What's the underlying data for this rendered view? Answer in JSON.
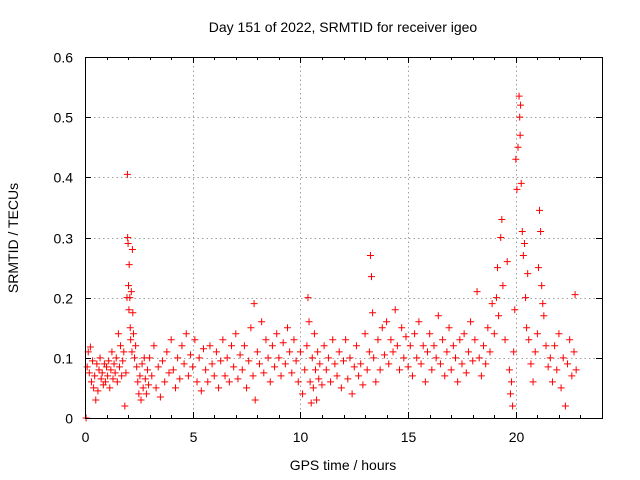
{
  "chart_data": {
    "type": "scatter",
    "title": "Day 151 of 2022, SRMTID for receiver igeo",
    "xlabel": "GPS time / hours",
    "ylabel": "SRMTID / TECUs",
    "xlim": [
      0,
      24
    ],
    "ylim": [
      0,
      0.6
    ],
    "xticks": [
      0,
      5,
      10,
      15,
      20
    ],
    "yticks": [
      0,
      0.1,
      0.2,
      0.3,
      0.4,
      0.5,
      0.6
    ],
    "xtick_labels": [
      "0",
      "5",
      "10",
      "15",
      "20"
    ],
    "ytick_labels": [
      "0",
      "0.1",
      "0.2",
      "0.3",
      "0.4",
      "0.5",
      "0.6"
    ],
    "grid": true,
    "marker": "+",
    "series": [
      {
        "name": "igeo",
        "color": "#ff0000",
        "points": [
          [
            0.05,
            0.0
          ],
          [
            0.1,
            0.085
          ],
          [
            0.15,
            0.11
          ],
          [
            0.2,
            0.075
          ],
          [
            0.25,
            0.118
          ],
          [
            0.3,
            0.06
          ],
          [
            0.35,
            0.095
          ],
          [
            0.4,
            0.05
          ],
          [
            0.45,
            0.07
          ],
          [
            0.5,
            0.03
          ],
          [
            0.55,
            0.09
          ],
          [
            0.6,
            0.045
          ],
          [
            0.65,
            0.08
          ],
          [
            0.7,
            0.1
          ],
          [
            0.75,
            0.065
          ],
          [
            0.8,
            0.075
          ],
          [
            0.85,
            0.055
          ],
          [
            0.9,
            0.09
          ],
          [
            0.95,
            0.06
          ],
          [
            1.0,
            0.085
          ],
          [
            1.05,
            0.07
          ],
          [
            1.1,
            0.095
          ],
          [
            1.15,
            0.05
          ],
          [
            1.2,
            0.08
          ],
          [
            1.25,
            0.11
          ],
          [
            1.3,
            0.065
          ],
          [
            1.35,
            0.09
          ],
          [
            1.4,
            0.075
          ],
          [
            1.45,
            0.1
          ],
          [
            1.5,
            0.06
          ],
          [
            1.55,
            0.14
          ],
          [
            1.6,
            0.085
          ],
          [
            1.65,
            0.12
          ],
          [
            1.7,
            0.07
          ],
          [
            1.75,
            0.095
          ],
          [
            1.8,
            0.11
          ],
          [
            1.85,
            0.02
          ],
          [
            1.9,
            0.075
          ],
          [
            1.95,
            0.2
          ],
          [
            1.97,
            0.405
          ],
          [
            1.98,
            0.3
          ],
          [
            2.0,
            0.29
          ],
          [
            2.02,
            0.22
          ],
          [
            2.04,
            0.18
          ],
          [
            2.05,
            0.255
          ],
          [
            2.08,
            0.2
          ],
          [
            2.1,
            0.15
          ],
          [
            2.12,
            0.13
          ],
          [
            2.15,
            0.21
          ],
          [
            2.18,
            0.11
          ],
          [
            2.2,
            0.28
          ],
          [
            2.22,
            0.175
          ],
          [
            2.25,
            0.14
          ],
          [
            2.3,
            0.1
          ],
          [
            2.35,
            0.12
          ],
          [
            2.4,
            0.085
          ],
          [
            2.45,
            0.06
          ],
          [
            2.5,
            0.04
          ],
          [
            2.55,
            0.07
          ],
          [
            2.6,
            0.03
          ],
          [
            2.65,
            0.09
          ],
          [
            2.7,
            0.05
          ],
          [
            2.75,
            0.1
          ],
          [
            2.8,
            0.065
          ],
          [
            2.85,
            0.04
          ],
          [
            2.9,
            0.08
          ],
          [
            2.95,
            0.055
          ],
          [
            3.0,
            0.1
          ],
          [
            3.1,
            0.07
          ],
          [
            3.2,
            0.12
          ],
          [
            3.3,
            0.05
          ],
          [
            3.4,
            0.085
          ],
          [
            3.5,
            0.035
          ],
          [
            3.6,
            0.095
          ],
          [
            3.7,
            0.06
          ],
          [
            3.8,
            0.11
          ],
          [
            3.9,
            0.075
          ],
          [
            4.0,
            0.13
          ],
          [
            4.1,
            0.08
          ],
          [
            4.2,
            0.05
          ],
          [
            4.3,
            0.1
          ],
          [
            4.4,
            0.065
          ],
          [
            4.5,
            0.12
          ],
          [
            4.6,
            0.09
          ],
          [
            4.7,
            0.14
          ],
          [
            4.8,
            0.07
          ],
          [
            4.9,
            0.105
          ],
          [
            5.0,
            0.085
          ],
          [
            5.1,
            0.13
          ],
          [
            5.2,
            0.06
          ],
          [
            5.3,
            0.1
          ],
          [
            5.4,
            0.045
          ],
          [
            5.5,
            0.115
          ],
          [
            5.6,
            0.08
          ],
          [
            5.7,
            0.06
          ],
          [
            5.8,
            0.12
          ],
          [
            5.9,
            0.09
          ],
          [
            6.0,
            0.07
          ],
          [
            6.1,
            0.11
          ],
          [
            6.2,
            0.05
          ],
          [
            6.3,
            0.095
          ],
          [
            6.4,
            0.13
          ],
          [
            6.5,
            0.07
          ],
          [
            6.6,
            0.1
          ],
          [
            6.7,
            0.06
          ],
          [
            6.8,
            0.12
          ],
          [
            6.9,
            0.085
          ],
          [
            7.0,
            0.14
          ],
          [
            7.1,
            0.065
          ],
          [
            7.2,
            0.105
          ],
          [
            7.3,
            0.08
          ],
          [
            7.4,
            0.12
          ],
          [
            7.5,
            0.05
          ],
          [
            7.6,
            0.095
          ],
          [
            7.7,
            0.15
          ],
          [
            7.8,
            0.07
          ],
          [
            7.85,
            0.19
          ],
          [
            7.9,
            0.03
          ],
          [
            8.0,
            0.11
          ],
          [
            8.1,
            0.09
          ],
          [
            8.2,
            0.16
          ],
          [
            8.3,
            0.075
          ],
          [
            8.4,
            0.13
          ],
          [
            8.5,
            0.1
          ],
          [
            8.6,
            0.06
          ],
          [
            8.7,
            0.12
          ],
          [
            8.8,
            0.085
          ],
          [
            8.9,
            0.14
          ],
          [
            9.0,
            0.1
          ],
          [
            9.1,
            0.07
          ],
          [
            9.2,
            0.125
          ],
          [
            9.3,
            0.09
          ],
          [
            9.4,
            0.15
          ],
          [
            9.5,
            0.11
          ],
          [
            9.6,
            0.075
          ],
          [
            9.7,
            0.13
          ],
          [
            9.8,
            0.095
          ],
          [
            9.9,
            0.06
          ],
          [
            10.0,
            0.11
          ],
          [
            10.1,
            0.04
          ],
          [
            10.2,
            0.08
          ],
          [
            10.3,
            0.12
          ],
          [
            10.35,
            0.2
          ],
          [
            10.4,
            0.16
          ],
          [
            10.45,
            0.06
          ],
          [
            10.5,
            0.025
          ],
          [
            10.55,
            0.1
          ],
          [
            10.6,
            0.05
          ],
          [
            10.65,
            0.14
          ],
          [
            10.7,
            0.08
          ],
          [
            10.75,
            0.03
          ],
          [
            10.8,
            0.11
          ],
          [
            10.85,
            0.065
          ],
          [
            10.9,
            0.09
          ],
          [
            11.0,
            0.055
          ],
          [
            11.1,
            0.12
          ],
          [
            11.2,
            0.08
          ],
          [
            11.3,
            0.1
          ],
          [
            11.4,
            0.06
          ],
          [
            11.5,
            0.13
          ],
          [
            11.6,
            0.09
          ],
          [
            11.7,
            0.07
          ],
          [
            11.8,
            0.11
          ],
          [
            11.9,
            0.05
          ],
          [
            12.0,
            0.095
          ],
          [
            12.1,
            0.13
          ],
          [
            12.2,
            0.065
          ],
          [
            12.3,
            0.1
          ],
          [
            12.4,
            0.04
          ],
          [
            12.5,
            0.085
          ],
          [
            12.6,
            0.12
          ],
          [
            12.7,
            0.07
          ],
          [
            12.8,
            0.09
          ],
          [
            12.9,
            0.055
          ],
          [
            13.0,
            0.14
          ],
          [
            13.1,
            0.08
          ],
          [
            13.2,
            0.11
          ],
          [
            13.25,
            0.27
          ],
          [
            13.3,
            0.235
          ],
          [
            13.35,
            0.175
          ],
          [
            13.4,
            0.1
          ],
          [
            13.5,
            0.06
          ],
          [
            13.6,
            0.13
          ],
          [
            13.7,
            0.08
          ],
          [
            13.8,
            0.15
          ],
          [
            13.9,
            0.105
          ],
          [
            14.0,
            0.16
          ],
          [
            14.1,
            0.09
          ],
          [
            14.2,
            0.13
          ],
          [
            14.3,
            0.11
          ],
          [
            14.4,
            0.18
          ],
          [
            14.5,
            0.12
          ],
          [
            14.6,
            0.08
          ],
          [
            14.7,
            0.15
          ],
          [
            14.8,
            0.1
          ],
          [
            14.9,
            0.135
          ],
          [
            15.0,
            0.085
          ],
          [
            15.1,
            0.12
          ],
          [
            15.2,
            0.07
          ],
          [
            15.3,
            0.14
          ],
          [
            15.4,
            0.1
          ],
          [
            15.5,
            0.16
          ],
          [
            15.6,
            0.09
          ],
          [
            15.7,
            0.12
          ],
          [
            15.8,
            0.06
          ],
          [
            15.9,
            0.11
          ],
          [
            16.0,
            0.14
          ],
          [
            16.1,
            0.08
          ],
          [
            16.2,
            0.12
          ],
          [
            16.3,
            0.1
          ],
          [
            16.4,
            0.17
          ],
          [
            16.5,
            0.09
          ],
          [
            16.6,
            0.13
          ],
          [
            16.7,
            0.07
          ],
          [
            16.8,
            0.11
          ],
          [
            16.9,
            0.15
          ],
          [
            17.0,
            0.08
          ],
          [
            17.1,
            0.12
          ],
          [
            17.2,
            0.1
          ],
          [
            17.3,
            0.06
          ],
          [
            17.4,
            0.13
          ],
          [
            17.5,
            0.09
          ],
          [
            17.6,
            0.14
          ],
          [
            17.7,
            0.075
          ],
          [
            17.8,
            0.11
          ],
          [
            17.9,
            0.16
          ],
          [
            18.0,
            0.095
          ],
          [
            18.1,
            0.13
          ],
          [
            18.2,
            0.21
          ],
          [
            18.3,
            0.1
          ],
          [
            18.4,
            0.07
          ],
          [
            18.5,
            0.12
          ],
          [
            18.6,
            0.09
          ],
          [
            18.7,
            0.15
          ],
          [
            18.8,
            0.11
          ],
          [
            18.9,
            0.19
          ],
          [
            19.0,
            0.14
          ],
          [
            19.1,
            0.2
          ],
          [
            19.15,
            0.25
          ],
          [
            19.2,
            0.17
          ],
          [
            19.3,
            0.3
          ],
          [
            19.35,
            0.33
          ],
          [
            19.4,
            0.22
          ],
          [
            19.5,
            0.13
          ],
          [
            19.6,
            0.26
          ],
          [
            19.7,
            0.08
          ],
          [
            19.75,
            0.04
          ],
          [
            19.8,
            0.06
          ],
          [
            19.85,
            0.02
          ],
          [
            19.9,
            0.11
          ],
          [
            19.95,
            0.18
          ],
          [
            20.0,
            0.43
          ],
          [
            20.05,
            0.38
          ],
          [
            20.1,
            0.45
          ],
          [
            20.15,
            0.535
          ],
          [
            20.18,
            0.5
          ],
          [
            20.2,
            0.47
          ],
          [
            20.22,
            0.52
          ],
          [
            20.25,
            0.39
          ],
          [
            20.3,
            0.31
          ],
          [
            20.35,
            0.27
          ],
          [
            20.4,
            0.29
          ],
          [
            20.45,
            0.2
          ],
          [
            20.5,
            0.15
          ],
          [
            20.55,
            0.24
          ],
          [
            20.6,
            0.13
          ],
          [
            20.7,
            0.09
          ],
          [
            20.8,
            0.06
          ],
          [
            20.9,
            0.11
          ],
          [
            21.0,
            0.14
          ],
          [
            21.05,
            0.25
          ],
          [
            21.1,
            0.345
          ],
          [
            21.15,
            0.31
          ],
          [
            21.2,
            0.22
          ],
          [
            21.25,
            0.19
          ],
          [
            21.3,
            0.17
          ],
          [
            21.4,
            0.12
          ],
          [
            21.5,
            0.085
          ],
          [
            21.6,
            0.1
          ],
          [
            21.7,
            0.06
          ],
          [
            21.8,
            0.12
          ],
          [
            21.9,
            0.08
          ],
          [
            22.0,
            0.14
          ],
          [
            22.1,
            0.05
          ],
          [
            22.2,
            0.1
          ],
          [
            22.3,
            0.02
          ],
          [
            22.4,
            0.09
          ],
          [
            22.5,
            0.13
          ],
          [
            22.6,
            0.07
          ],
          [
            22.7,
            0.11
          ],
          [
            22.75,
            0.205
          ],
          [
            22.8,
            0.08
          ]
        ]
      }
    ]
  }
}
